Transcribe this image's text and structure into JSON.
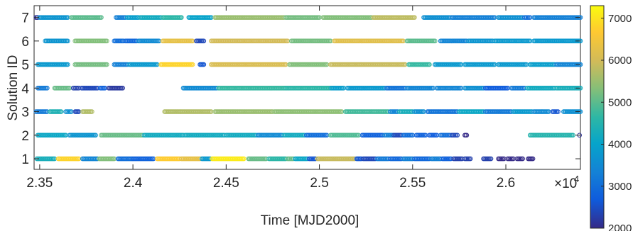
{
  "chart_data": {
    "type": "scatter",
    "title": "",
    "xlabel": "Time [MJD2000]",
    "ylabel": "Solution ID",
    "xlim": [
      23470,
      26400
    ],
    "ylim": [
      0.55,
      7.5
    ],
    "x_ticks": [
      23500,
      24000,
      24500,
      25000,
      25500,
      26000
    ],
    "x_tick_labels": [
      "2.35",
      "2.4",
      "2.45",
      "2.5",
      "2.55",
      "2.6"
    ],
    "x_exponent_base": "×10",
    "x_exponent_power": "4",
    "y_ticks": [
      1,
      2,
      3,
      4,
      5,
      6,
      7
    ],
    "y_tick_labels": [
      "1",
      "2",
      "3",
      "4",
      "5",
      "6",
      "7"
    ],
    "grid": false,
    "marker": "open-circle",
    "colorbar": {
      "colormap": "parula",
      "min": 2000,
      "max": 7300,
      "ticks": [
        2000,
        3000,
        4000,
        5000,
        6000,
        7000
      ],
      "tick_labels": [
        "2000",
        "3000",
        "4000",
        "5000",
        "6000",
        "7000"
      ]
    },
    "series": [
      {
        "id": 1,
        "segments": [
          [
            23485,
            23580,
            4300
          ],
          [
            23600,
            23710,
            6800
          ],
          [
            23730,
            23810,
            3400
          ],
          [
            23820,
            23900,
            5300
          ],
          [
            23920,
            23995,
            3000
          ],
          [
            24000,
            24110,
            2800
          ],
          [
            24130,
            24250,
            6700
          ],
          [
            24260,
            24360,
            6300
          ],
          [
            24370,
            24415,
            3800
          ],
          [
            24425,
            24595,
            7100
          ],
          [
            24620,
            24715,
            5100
          ],
          [
            24730,
            24820,
            4600
          ],
          [
            24830,
            24860,
            5100
          ],
          [
            24870,
            24935,
            4100
          ],
          [
            24945,
            24980,
            2600
          ],
          [
            24990,
            25190,
            5900
          ],
          [
            25200,
            25225,
            2600
          ],
          [
            25235,
            25300,
            2400
          ],
          [
            25310,
            25370,
            3200
          ],
          [
            25380,
            25440,
            2900
          ],
          [
            25450,
            25500,
            3300
          ],
          [
            25510,
            25590,
            2900
          ],
          [
            25600,
            25650,
            3300
          ],
          [
            25660,
            25705,
            2800
          ],
          [
            25720,
            25765,
            2300
          ],
          [
            25780,
            25810,
            2300
          ],
          [
            25880,
            25920,
            2300
          ],
          [
            25960,
            25990,
            2000
          ],
          [
            26010,
            26040,
            2000
          ],
          [
            26060,
            26090,
            2000
          ],
          [
            26120,
            26145,
            2000
          ]
        ]
      },
      {
        "id": 2,
        "segments": [
          [
            23490,
            23640,
            4100
          ],
          [
            23660,
            23800,
            3700
          ],
          [
            23830,
            24050,
            5100
          ],
          [
            24060,
            24270,
            4200
          ],
          [
            24280,
            24490,
            4200
          ],
          [
            24500,
            24660,
            4200
          ],
          [
            24670,
            24800,
            3500
          ],
          [
            24810,
            24920,
            4200
          ],
          [
            24930,
            25040,
            3000
          ],
          [
            25060,
            25210,
            4900
          ],
          [
            25230,
            25340,
            2800
          ],
          [
            25350,
            25395,
            3300
          ],
          [
            25400,
            25440,
            2400
          ],
          [
            25450,
            25500,
            3000
          ],
          [
            25520,
            25570,
            2800
          ],
          [
            25590,
            25630,
            2700
          ],
          [
            25650,
            25700,
            3000
          ],
          [
            25710,
            25740,
            2400
          ],
          [
            25780,
            25790,
            2000
          ],
          [
            26130,
            26360,
            4500
          ],
          [
            26395,
            26395,
            2100
          ]
        ]
      },
      {
        "id": 3,
        "segments": [
          [
            23480,
            23540,
            3200
          ],
          [
            23555,
            23615,
            4400
          ],
          [
            23640,
            23670,
            3600
          ],
          [
            23690,
            23710,
            2400
          ],
          [
            23730,
            23780,
            5700
          ],
          [
            24170,
            24420,
            5700
          ],
          [
            24440,
            24750,
            5500
          ],
          [
            24760,
            25120,
            5400
          ],
          [
            25140,
            25370,
            4800
          ],
          [
            25380,
            25420,
            3400
          ],
          [
            25430,
            25500,
            4300
          ],
          [
            25510,
            25560,
            3600
          ],
          [
            25580,
            25740,
            3100
          ],
          [
            25750,
            25880,
            4100
          ],
          [
            25890,
            26030,
            3200
          ],
          [
            26040,
            26140,
            3800
          ],
          [
            26150,
            26230,
            3500
          ],
          [
            26250,
            26280,
            2600
          ],
          [
            26310,
            26400,
            3600
          ]
        ]
      },
      {
        "id": 4,
        "segments": [
          [
            23490,
            23540,
            3200
          ],
          [
            23580,
            23660,
            5100
          ],
          [
            23680,
            23710,
            2300
          ],
          [
            23725,
            23810,
            2400
          ],
          [
            23825,
            23850,
            2800
          ],
          [
            23870,
            23945,
            2200
          ],
          [
            24270,
            24450,
            3500
          ],
          [
            24460,
            24815,
            4700
          ],
          [
            24820,
            25060,
            4600
          ],
          [
            25065,
            25130,
            3900
          ],
          [
            25150,
            25350,
            3800
          ],
          [
            25360,
            25460,
            3100
          ],
          [
            25470,
            25610,
            3400
          ],
          [
            25630,
            25760,
            3400
          ],
          [
            25780,
            25880,
            3600
          ],
          [
            25890,
            26010,
            2700
          ],
          [
            26030,
            26100,
            3200
          ],
          [
            26115,
            26260,
            4200
          ],
          [
            26270,
            26400,
            4300
          ]
        ]
      },
      {
        "id": 5,
        "segments": [
          [
            23490,
            23650,
            3800
          ],
          [
            23690,
            23860,
            5200
          ],
          [
            23900,
            23970,
            3300
          ],
          [
            23980,
            24130,
            3800
          ],
          [
            24150,
            24320,
            6800
          ],
          [
            24360,
            24380,
            2600
          ],
          [
            24420,
            24820,
            6100
          ],
          [
            24840,
            25040,
            5300
          ],
          [
            25060,
            25460,
            5900
          ],
          [
            25480,
            25590,
            4700
          ],
          [
            25620,
            25760,
            3800
          ],
          [
            25780,
            25940,
            3800
          ],
          [
            25960,
            26110,
            3800
          ],
          [
            26130,
            26260,
            3900
          ],
          [
            26270,
            26400,
            3400
          ]
        ]
      },
      {
        "id": 6,
        "segments": [
          [
            23530,
            23650,
            3700
          ],
          [
            23690,
            23860,
            5300
          ],
          [
            23900,
            23950,
            3000
          ],
          [
            23960,
            24020,
            2900
          ],
          [
            24030,
            24140,
            3500
          ],
          [
            24160,
            24320,
            6300
          ],
          [
            24340,
            24380,
            2400
          ],
          [
            24420,
            24830,
            6000
          ],
          [
            24850,
            25060,
            5200
          ],
          [
            25080,
            25450,
            6200
          ],
          [
            25470,
            25620,
            5000
          ],
          [
            25650,
            25790,
            3400
          ],
          [
            25800,
            25930,
            3700
          ],
          [
            25940,
            26130,
            3800
          ],
          [
            26150,
            26400,
            3800
          ]
        ]
      },
      {
        "id": 7,
        "segments": [
          [
            23480,
            23490,
            2100
          ],
          [
            23500,
            23650,
            3700
          ],
          [
            23670,
            23830,
            5000
          ],
          [
            23910,
            23960,
            3300
          ],
          [
            23970,
            24030,
            3900
          ],
          [
            24040,
            24150,
            4200
          ],
          [
            24160,
            24260,
            4600
          ],
          [
            24300,
            24420,
            4000
          ],
          [
            24440,
            24810,
            5500
          ],
          [
            24820,
            25000,
            5200
          ],
          [
            25020,
            25280,
            5300
          ],
          [
            25290,
            25510,
            5800
          ],
          [
            25560,
            25700,
            3600
          ],
          [
            25710,
            25940,
            3300
          ],
          [
            25960,
            26090,
            3600
          ],
          [
            26100,
            26130,
            3000
          ],
          [
            26150,
            26400,
            3300
          ]
        ]
      }
    ]
  }
}
